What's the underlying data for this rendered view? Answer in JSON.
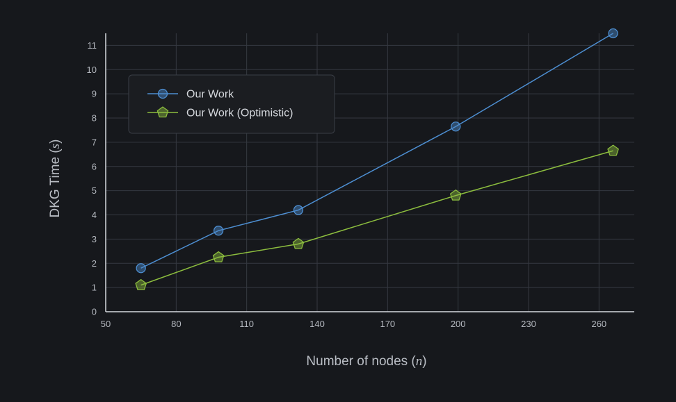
{
  "chart_data": {
    "type": "line",
    "xlabel": "Number of nodes (n)",
    "xlabel_parts": {
      "text": "Number of nodes (",
      "var": "n",
      "close": ")"
    },
    "ylabel": "DKG Time (s)",
    "ylabel_parts": {
      "text": "DKG Time (",
      "var": "s",
      "close": ")"
    },
    "xlim": [
      50,
      275
    ],
    "ylim": [
      0,
      11.5
    ],
    "xticks": [
      50,
      80,
      110,
      140,
      170,
      200,
      230,
      260
    ],
    "yticks": [
      0,
      1,
      2,
      3,
      4,
      5,
      6,
      7,
      8,
      9,
      10,
      11
    ],
    "grid": true,
    "legend_position": "upper-left",
    "series": [
      {
        "name": "Our Work",
        "marker": "circle",
        "color": "#4d8ed1",
        "x": [
          65,
          98,
          132,
          199,
          266
        ],
        "y": [
          1.8,
          3.35,
          4.2,
          7.65,
          11.5
        ]
      },
      {
        "name": "Our Work (Optimistic)",
        "marker": "pentagon",
        "color": "#8cbd3e",
        "x": [
          65,
          98,
          132,
          199,
          266
        ],
        "y": [
          1.1,
          2.25,
          2.8,
          4.8,
          6.65
        ]
      }
    ]
  }
}
